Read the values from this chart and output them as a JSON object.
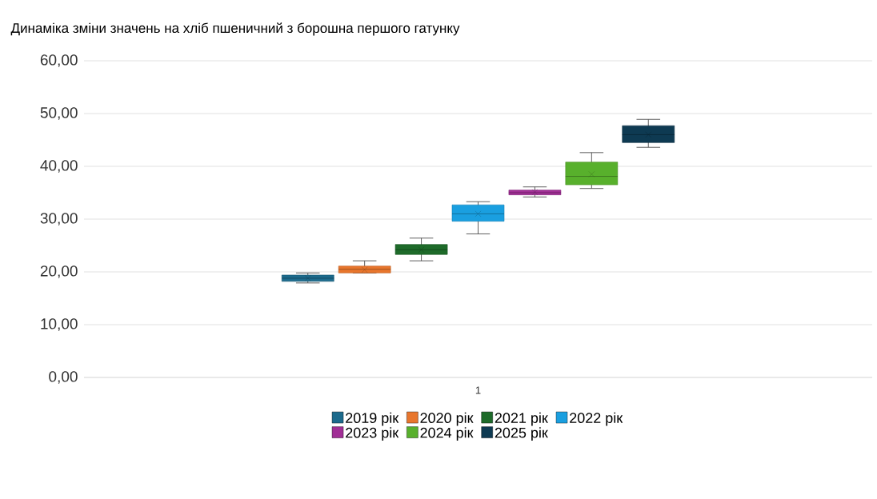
{
  "chart_data": {
    "type": "box",
    "title": "Динаміка зміни значень на хліб пшеничний з борошна першого гатунку",
    "categories": [
      "1"
    ],
    "ylim": [
      0,
      60
    ],
    "yticks": [
      {
        "value": 0,
        "label": "0,00"
      },
      {
        "value": 10,
        "label": "10,00"
      },
      {
        "value": 20,
        "label": "20,00"
      },
      {
        "value": 30,
        "label": "30,00"
      },
      {
        "value": 40,
        "label": "40,00"
      },
      {
        "value": 50,
        "label": "50,00"
      },
      {
        "value": 60,
        "label": "60,00"
      }
    ],
    "grid": "y",
    "legend": "bottom",
    "series": [
      {
        "name": "2019 рік",
        "color": "#1c6a8c",
        "boxes": [
          {
            "low": 17.9,
            "q1": 18.2,
            "median": 18.8,
            "q3": 19.4,
            "high": 19.8,
            "mean": 18.8
          }
        ]
      },
      {
        "name": "2020 рік",
        "color": "#e8762d",
        "boxes": [
          {
            "low": 19.8,
            "q1": 19.8,
            "median": 20.5,
            "q3": 21.1,
            "high": 22.1,
            "mean": 20.4
          }
        ]
      },
      {
        "name": "2021 рік",
        "color": "#1e6b2a",
        "boxes": [
          {
            "low": 22.1,
            "q1": 23.3,
            "median": 24.2,
            "q3": 25.2,
            "high": 26.4,
            "mean": 24.2
          }
        ]
      },
      {
        "name": "2022 рік",
        "color": "#1a9fe0",
        "boxes": [
          {
            "low": 27.2,
            "q1": 29.6,
            "median": 31.0,
            "q3": 32.7,
            "high": 33.3,
            "mean": 31.0
          }
        ]
      },
      {
        "name": "2023 рік",
        "color": "#a12f96",
        "boxes": [
          {
            "low": 34.2,
            "q1": 34.6,
            "median": 35.0,
            "q3": 35.5,
            "high": 36.1,
            "mean": 35.1
          }
        ]
      },
      {
        "name": "2024 рік",
        "color": "#58b02c",
        "boxes": [
          {
            "low": 35.8,
            "q1": 36.5,
            "median": 38.1,
            "q3": 40.8,
            "high": 42.6,
            "mean": 38.5
          }
        ]
      },
      {
        "name": "2025 рік",
        "color": "#0e3a52",
        "boxes": [
          {
            "low": 43.6,
            "q1": 44.5,
            "median": 46.0,
            "q3": 47.7,
            "high": 48.9,
            "mean": 46.0
          }
        ]
      }
    ]
  }
}
